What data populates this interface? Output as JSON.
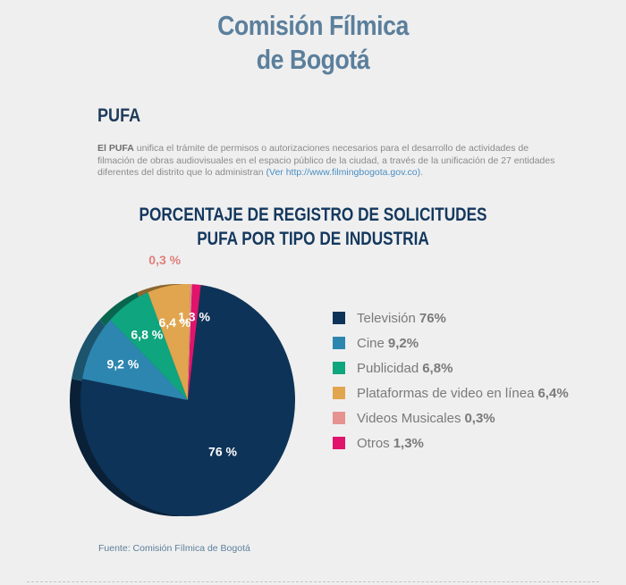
{
  "header": {
    "title_line1": "Comisión Fílmica",
    "title_line2": "de Bogotá"
  },
  "section": {
    "heading": "PUFA",
    "intro_bold": "El PUFA",
    "intro_text": " unifica el trámite de permisos o autorizaciones necesarios para el desarrollo de actividades de filmación de obras audiovisuales en el espacio público de la ciudad, a través de la unificación de 27 entidades diferentes del distrito que lo administran ",
    "intro_link": "(Ver http://www.filmingbogota.gov.co)",
    "intro_end": "."
  },
  "chart_data": {
    "type": "pie",
    "title_line1": "PORCENTAJE DE REGISTRO DE SOLICITUDES",
    "title_line2": "PUFA POR TIPO DE INDUSTRIA",
    "slices": [
      {
        "name": "Televisión",
        "value": 76,
        "legend_value": "76%",
        "slice_label": "76 %",
        "color": "#0e3358",
        "label_color": "#ffffff"
      },
      {
        "name": "Cine",
        "value": 9.2,
        "legend_value": "9,2%",
        "slice_label": "9,2 %",
        "color": "#2d86b0",
        "label_color": "#ffffff"
      },
      {
        "name": "Publicidad",
        "value": 6.8,
        "legend_value": "6,8%",
        "slice_label": "6,8 %",
        "color": "#0fa57e",
        "label_color": "#ffffff"
      },
      {
        "name": "Plataformas de video en línea",
        "value": 6.4,
        "legend_value": "6,4%",
        "slice_label": "6,4 %",
        "color": "#e0a54e",
        "label_color": "#ffffff"
      },
      {
        "name": "Videos Musicales",
        "value": 0.3,
        "legend_value": "0,3%",
        "slice_label": "0,3 %",
        "color": "#e69290",
        "label_color": "#e07f7c"
      },
      {
        "name": "Otros",
        "value": 1.3,
        "legend_value": "1,3%",
        "slice_label": "1,3 %",
        "color": "#e2136b",
        "label_color": "#ffffff"
      }
    ],
    "legend_position": "right"
  },
  "footer": {
    "source_label": "Fuente:",
    "source_text": "Comisión Fílmica de Bogotá"
  }
}
